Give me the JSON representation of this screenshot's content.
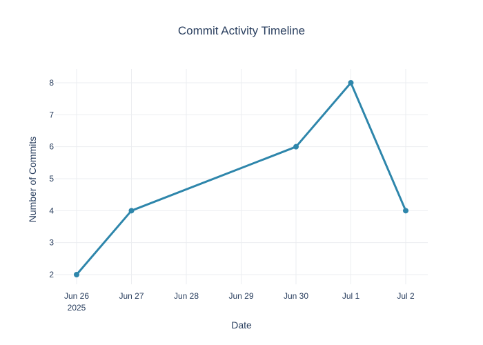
{
  "chart_data": {
    "type": "line",
    "title": "Commit Activity Timeline",
    "xlabel": "Date",
    "ylabel": "Number of Commits",
    "x_ticks": [
      {
        "date": "2025-06-26",
        "label": "Jun 26",
        "sublabel": "2025"
      },
      {
        "date": "2025-06-27",
        "label": "Jun 27",
        "sublabel": ""
      },
      {
        "date": "2025-06-28",
        "label": "Jun 28",
        "sublabel": ""
      },
      {
        "date": "2025-06-29",
        "label": "Jun 29",
        "sublabel": ""
      },
      {
        "date": "2025-06-30",
        "label": "Jun 30",
        "sublabel": ""
      },
      {
        "date": "2025-07-01",
        "label": "Jul 1",
        "sublabel": ""
      },
      {
        "date": "2025-07-02",
        "label": "Jul 2",
        "sublabel": ""
      }
    ],
    "y_ticks": [
      "2",
      "3",
      "4",
      "5",
      "6",
      "7",
      "8"
    ],
    "xlim": [
      "2025-06-26",
      "2025-07-02"
    ],
    "ylim": [
      2,
      8
    ],
    "grid": true,
    "series": [
      {
        "color": "#2e86ab",
        "points": [
          {
            "x": "2025-06-26",
            "y": 2
          },
          {
            "x": "2025-06-27",
            "y": 4
          },
          {
            "x": "2025-06-30",
            "y": 6
          },
          {
            "x": "2025-07-01",
            "y": 8
          },
          {
            "x": "2025-07-02",
            "y": 4
          }
        ]
      }
    ]
  }
}
